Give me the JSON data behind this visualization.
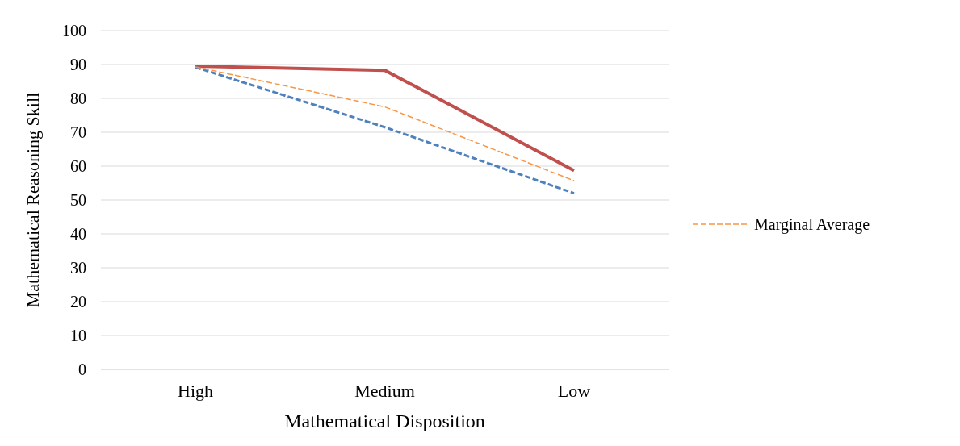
{
  "chart_data": {
    "type": "line",
    "xlabel": "Mathematical Disposition",
    "ylabel": "Mathematical Reasoning Skill",
    "categories": [
      "High",
      "Medium",
      "Low"
    ],
    "series": [
      {
        "color": "#c0504d",
        "line_style": "solid",
        "values": [
          89.5,
          88.3,
          58.7
        ]
      },
      {
        "color": "#4f81bd",
        "line_style": "dashed",
        "values": [
          89.2,
          71.5,
          52
        ]
      },
      {
        "name": "Marginal Average",
        "color": "#f79646",
        "line_style": "dashed",
        "values": [
          89.3,
          77.5,
          55.7
        ]
      }
    ],
    "ylim": [
      0,
      100
    ],
    "yticks": [
      0,
      10,
      20,
      30,
      40,
      50,
      60,
      70,
      80,
      90,
      100
    ],
    "grid": "y",
    "legend": "right",
    "marker": "none"
  }
}
